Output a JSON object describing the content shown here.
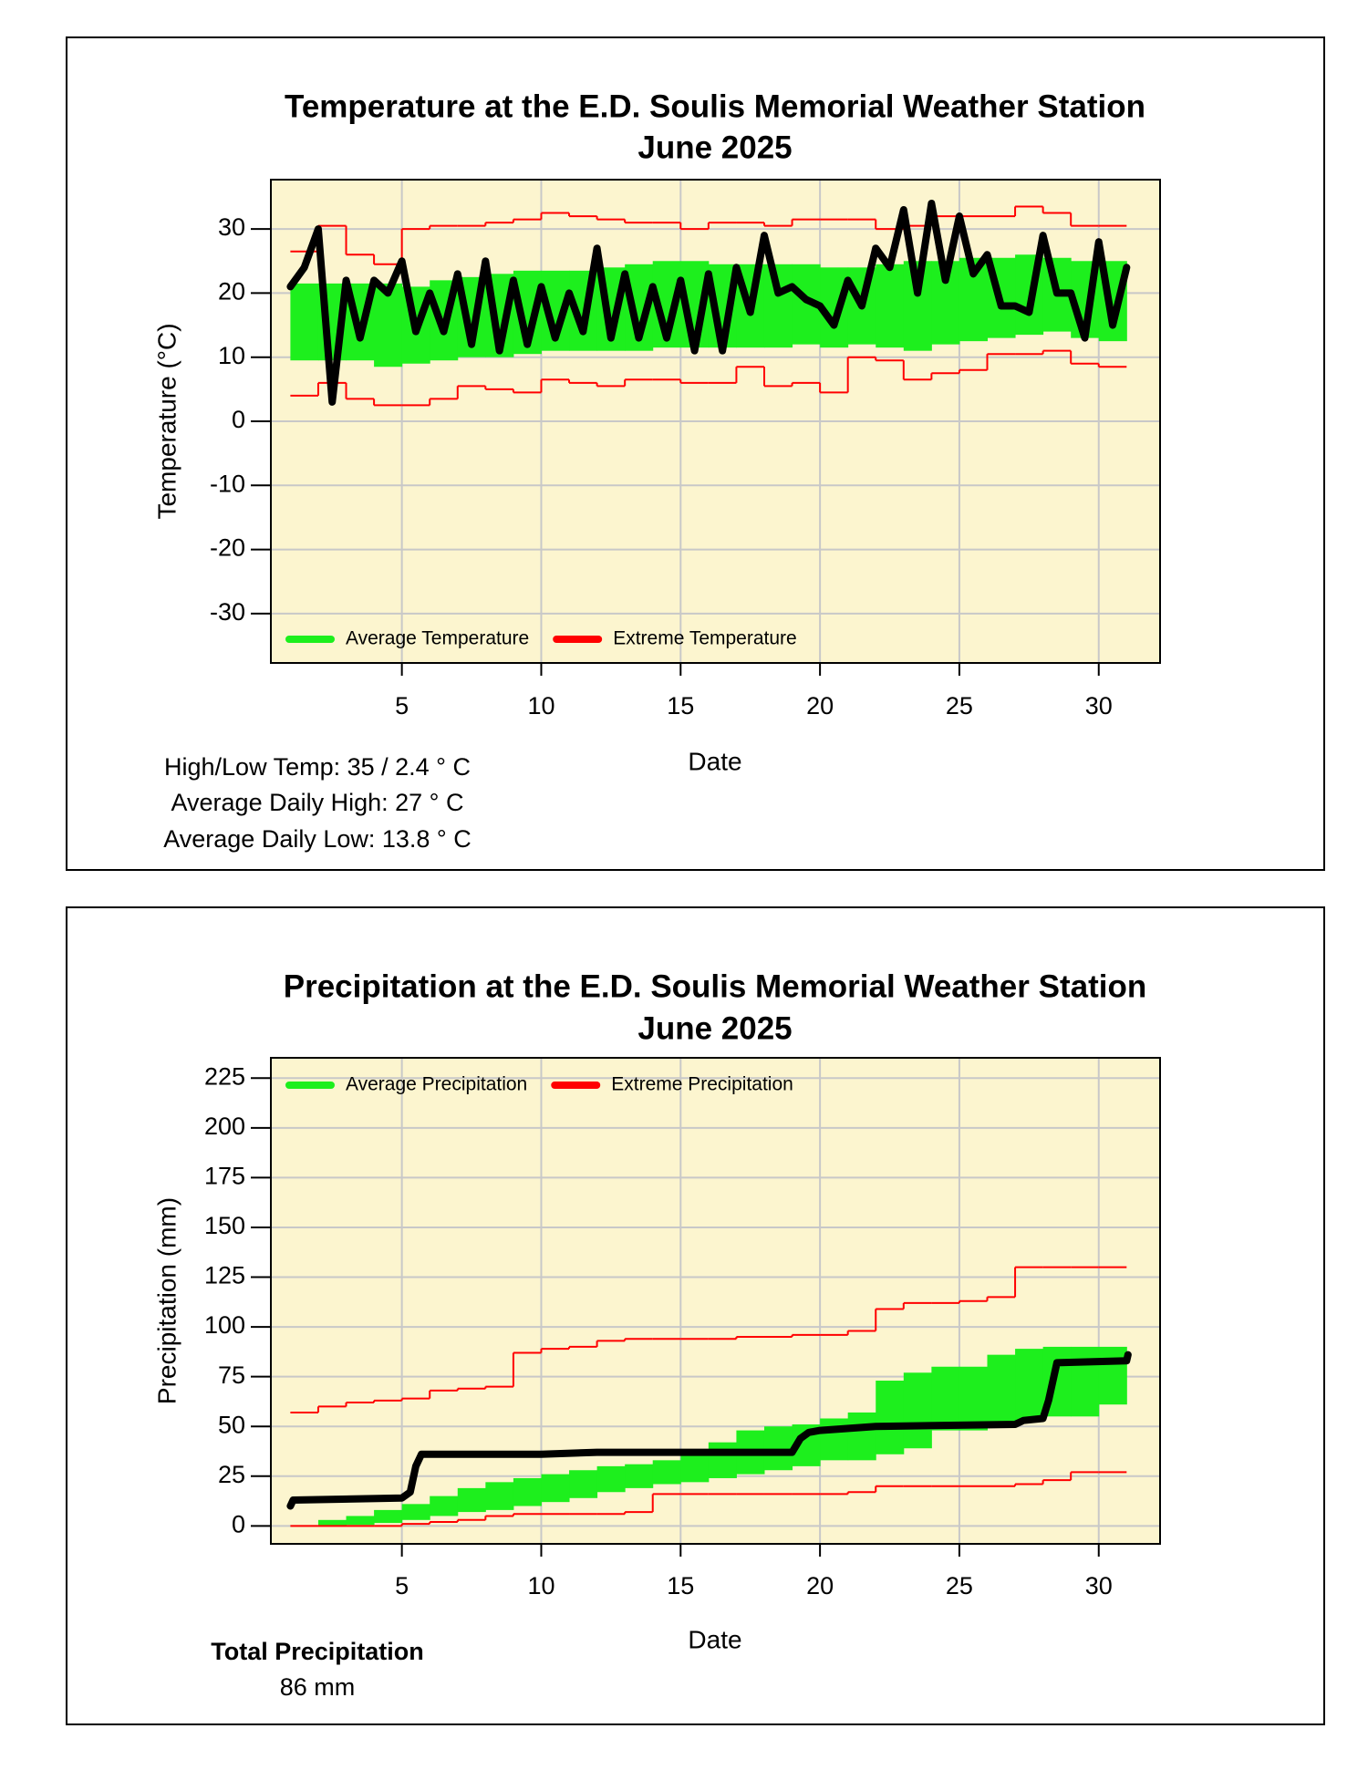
{
  "chart_data": [
    {
      "type": "line",
      "title": "Temperature at the E.D. Soulis Memorial Weather Station",
      "subtitle": "June 2025",
      "xlabel": "Date",
      "ylabel": "Temperature (°C)",
      "xlim": [
        0.3,
        32.2
      ],
      "ylim": [
        -37.7,
        37.7
      ],
      "xticks": [
        5,
        10,
        15,
        20,
        25,
        30
      ],
      "yticks": [
        -30,
        -20,
        -10,
        0,
        10,
        20,
        30
      ],
      "grid": true,
      "legend": "lower left",
      "background": "#fcf5cf",
      "bands": [
        {
          "name": "Average Temperature",
          "color": "#1def1d",
          "x": [
            1,
            2,
            3,
            4,
            5,
            6,
            7,
            8,
            9,
            10,
            11,
            12,
            13,
            14,
            15,
            16,
            17,
            18,
            19,
            20,
            21,
            22,
            23,
            24,
            25,
            26,
            27,
            28,
            29,
            30
          ],
          "low": [
            9.5,
            9.5,
            9.5,
            8.5,
            9,
            9.5,
            10,
            10,
            10.5,
            11,
            11,
            11,
            11,
            11.5,
            11.5,
            11.5,
            11.5,
            11.5,
            12,
            11.5,
            12,
            11.5,
            11,
            12,
            12.5,
            13,
            13.5,
            14,
            13,
            12.5
          ],
          "high": [
            21.5,
            21.5,
            21.5,
            21.5,
            21,
            22,
            22.5,
            23,
            23.5,
            23.5,
            23.5,
            24,
            24.5,
            25,
            25,
            24.5,
            24.5,
            24.5,
            24.5,
            24,
            24,
            24.5,
            25,
            25,
            25.5,
            25.5,
            26,
            25.5,
            25,
            25
          ]
        }
      ],
      "steps": [
        {
          "name": "Extreme Temperature",
          "color": "#ff0000",
          "x": [
            1,
            2,
            3,
            4,
            5,
            6,
            7,
            8,
            9,
            10,
            11,
            12,
            13,
            14,
            15,
            16,
            17,
            18,
            19,
            20,
            21,
            22,
            23,
            24,
            25,
            26,
            27,
            28,
            29,
            30
          ],
          "values": [
            26.5,
            30.5,
            26,
            24.5,
            30,
            30.5,
            30.5,
            31,
            31.5,
            32.5,
            32,
            31.5,
            31,
            31,
            30,
            31,
            31,
            30.5,
            31.5,
            31.5,
            31.5,
            30,
            30.5,
            32,
            32,
            32,
            33.5,
            32.5,
            30.5,
            30.5
          ]
        },
        {
          "color": "#ff0000",
          "x": [
            1,
            2,
            3,
            4,
            5,
            6,
            7,
            8,
            9,
            10,
            11,
            12,
            13,
            14,
            15,
            16,
            17,
            18,
            19,
            20,
            21,
            22,
            23,
            24,
            25,
            26,
            27,
            28,
            29,
            30
          ],
          "values": [
            4,
            6,
            3.5,
            2.5,
            2.5,
            3.5,
            5.5,
            5,
            4.5,
            6.5,
            6,
            5.5,
            6.5,
            6.5,
            6,
            6,
            8.5,
            5.5,
            6,
            4.5,
            10,
            9.5,
            6.5,
            7.5,
            8,
            10.5,
            10.5,
            11,
            9,
            8.5
          ]
        }
      ],
      "series": [
        {
          "color": "#000000",
          "x": [
            1,
            1.5,
            2,
            2.5,
            3,
            3.5,
            4,
            4.5,
            5,
            5.5,
            6,
            6.5,
            7,
            7.5,
            8,
            8.5,
            9,
            9.5,
            10,
            10.5,
            11,
            11.5,
            12,
            12.5,
            13,
            13.5,
            14,
            14.5,
            15,
            15.5,
            16,
            16.5,
            17,
            17.5,
            18,
            18.5,
            19,
            19.5,
            20,
            20.5,
            21,
            21.5,
            22,
            22.5,
            23,
            23.5,
            24,
            24.5,
            25,
            25.5,
            26,
            26.5,
            27,
            27.5,
            28,
            28.5,
            29,
            29.5,
            30,
            30.5,
            31
          ],
          "values": [
            21,
            24,
            30,
            3,
            22,
            13,
            22,
            20,
            25,
            14,
            20,
            14,
            23,
            12,
            25,
            11,
            22,
            12,
            21,
            13,
            20,
            14,
            27,
            13,
            23,
            13,
            21,
            13,
            22,
            11,
            23,
            11,
            24,
            17,
            29,
            20,
            21,
            19,
            18,
            15,
            22,
            18,
            27,
            24,
            33,
            20,
            34,
            22,
            32,
            23,
            26,
            18,
            18,
            17,
            29,
            20,
            20,
            13,
            28,
            15,
            24
          ]
        }
      ],
      "notes": [
        "High/Low Temp:  35 / 2.4 ° C",
        "Average Daily High:  27 ° C",
        "Average Daily Low:  13.8 ° C"
      ]
    },
    {
      "type": "line",
      "title": "Precipitation at the E.D. Soulis Memorial Weather Station",
      "subtitle": "June 2025",
      "xlabel": "Date",
      "ylabel": "Precipitation (mm)",
      "xlim": [
        0.3,
        32.2
      ],
      "ylim": [
        -9,
        235.2
      ],
      "xticks": [
        5,
        10,
        15,
        20,
        25,
        30
      ],
      "yticks": [
        0,
        25,
        50,
        75,
        100,
        125,
        150,
        175,
        200,
        225
      ],
      "grid": true,
      "legend": "upper left",
      "background": "#fcf5cf",
      "bands": [
        {
          "name": "Average Precipitation",
          "color": "#1def1d",
          "x": [
            2,
            3,
            4,
            5,
            6,
            7,
            8,
            9,
            10,
            11,
            12,
            13,
            14,
            15,
            16,
            17,
            18,
            19,
            20,
            21,
            22,
            23,
            24,
            25,
            26,
            27,
            28,
            29,
            30
          ],
          "low": [
            0,
            0.5,
            1.5,
            3,
            5,
            7,
            8,
            10,
            12,
            14,
            17,
            19,
            21,
            22,
            24,
            26,
            28,
            30,
            33,
            33,
            36,
            39,
            48,
            48,
            51,
            53,
            55,
            55,
            61
          ],
          "high": [
            3,
            5,
            8,
            11,
            15,
            19,
            22,
            24,
            26,
            28,
            30,
            31,
            33,
            36,
            42,
            48,
            50,
            51,
            54,
            57,
            73,
            77,
            80,
            80,
            86,
            89,
            90,
            90,
            90
          ]
        }
      ],
      "steps": [
        {
          "name": "Extreme Precipitation",
          "color": "#ff0000",
          "x": [
            1,
            2,
            3,
            4,
            5,
            6,
            7,
            8,
            9,
            10,
            11,
            12,
            13,
            14,
            15,
            16,
            17,
            18,
            19,
            20,
            21,
            22,
            23,
            24,
            25,
            26,
            27,
            28,
            29,
            30
          ],
          "values": [
            57,
            60,
            62,
            63,
            64,
            68,
            69,
            70,
            87,
            89,
            90,
            93,
            94,
            94,
            94,
            94,
            95,
            95,
            96,
            96,
            98,
            109,
            112,
            112,
            113,
            115,
            130,
            130,
            130,
            130
          ]
        },
        {
          "color": "#ff0000",
          "x": [
            1,
            2,
            3,
            4,
            5,
            6,
            7,
            8,
            9,
            10,
            11,
            12,
            13,
            14,
            15,
            16,
            17,
            18,
            19,
            20,
            21,
            22,
            23,
            24,
            25,
            26,
            27,
            28,
            29,
            30
          ],
          "values": [
            0,
            0,
            0,
            0,
            1,
            2,
            3,
            5,
            6,
            6,
            6,
            6,
            7,
            16,
            16,
            16,
            16,
            16,
            16,
            16,
            17,
            20,
            20,
            20,
            20,
            20,
            21,
            23,
            27,
            27
          ]
        }
      ],
      "series": [
        {
          "color": "#000000",
          "x": [
            1,
            1.1,
            5,
            5.3,
            5.5,
            5.7,
            10,
            12,
            19,
            19.3,
            19.6,
            20,
            22,
            27,
            27.3,
            28,
            28.2,
            28.5,
            31,
            31.05
          ],
          "values": [
            10,
            13,
            14,
            17,
            30,
            36,
            36,
            37,
            37,
            44,
            47,
            48,
            50,
            51,
            53,
            54,
            63,
            82,
            83,
            86
          ]
        }
      ],
      "note_title": "Total Precipitation",
      "notes": [
        "86 mm"
      ]
    }
  ]
}
